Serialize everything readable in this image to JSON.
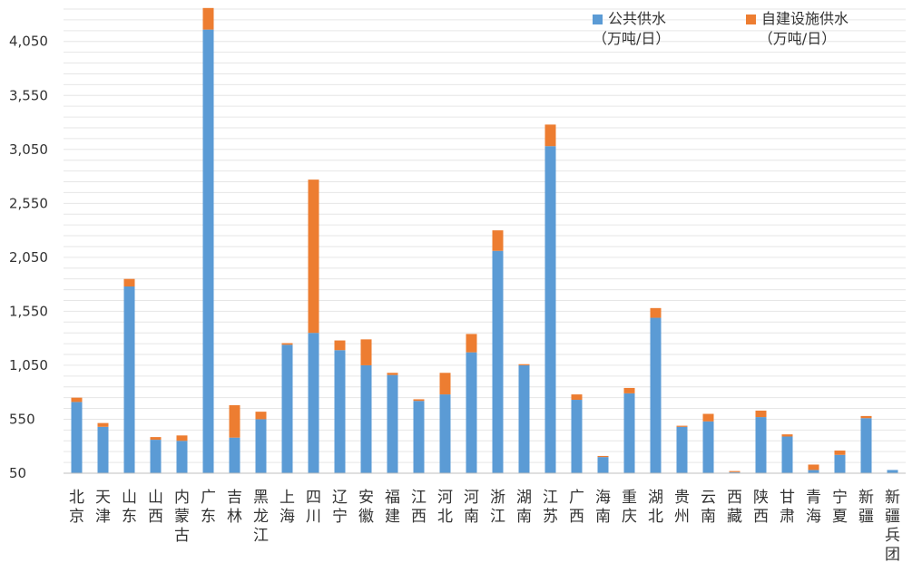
{
  "chart_data": {
    "type": "bar",
    "stacked": true,
    "categories": [
      "北京",
      "天津",
      "山东",
      "山西",
      "内蒙古",
      "广东",
      "吉林",
      "黑龙江",
      "上海",
      "四川",
      "辽宁",
      "安徽",
      "福建",
      "江西",
      "河北",
      "河南",
      "浙江",
      "湖南",
      "江苏",
      "广西",
      "海南",
      "重庆",
      "湖北",
      "贵州",
      "云南",
      "西藏",
      "陕西",
      "甘肃",
      "青海",
      "宁夏",
      "新疆",
      "新疆兵团"
    ],
    "series": [
      {
        "name": "公共供水（万吨/日）",
        "unit": "（万吨/日）",
        "label": "公共供水",
        "color": "#5B9BD5",
        "values": [
          710,
          480,
          1780,
          360,
          350,
          4160,
          380,
          550,
          1240,
          1350,
          1190,
          1050,
          960,
          720,
          780,
          1170,
          2110,
          1050,
          3080,
          730,
          200,
          790,
          1490,
          480,
          530,
          60,
          570,
          390,
          80,
          220,
          560,
          80
        ]
      },
      {
        "name": "自建设施供水（万吨/日）",
        "unit": "（万吨/日）",
        "label": "自建设施供水",
        "color": "#ED7D31",
        "values": [
          40,
          35,
          70,
          25,
          50,
          200,
          300,
          70,
          15,
          1420,
          90,
          240,
          20,
          15,
          200,
          170,
          190,
          10,
          200,
          50,
          10,
          50,
          90,
          10,
          70,
          10,
          60,
          20,
          50,
          40,
          20,
          0
        ]
      }
    ],
    "ylim": [
      50,
      4350
    ],
    "yticks": [
      50,
      550,
      1050,
      1550,
      2050,
      2550,
      3050,
      3550,
      4050
    ],
    "ytick_labels": [
      "50",
      "550",
      "1,050",
      "1,550",
      "2,050",
      "2,550",
      "3,050",
      "3,550",
      "4,050"
    ],
    "grid": true,
    "legend_position": "top-right"
  }
}
